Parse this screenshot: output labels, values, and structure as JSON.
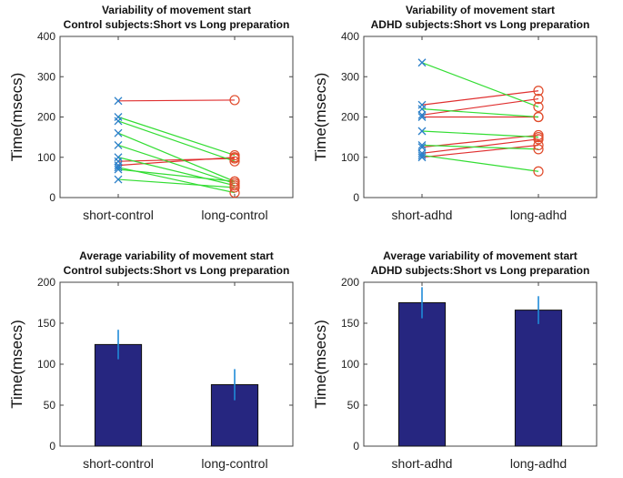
{
  "chart_data": [
    {
      "type": "line",
      "title": "Variability of movement start",
      "subtitle": "Control subjects:Short vs Long preparation",
      "xlabel": "",
      "ylabel": "Time(msecs)",
      "ylim": [
        0,
        400
      ],
      "yticks": [
        0,
        100,
        200,
        300,
        400
      ],
      "categories": [
        "short-control",
        "long-control"
      ],
      "pairs": [
        {
          "short": 240,
          "long": 242,
          "color": "#e03030"
        },
        {
          "short": 90,
          "long": 97,
          "color": "#e03030"
        },
        {
          "short": 80,
          "long": 100,
          "color": "#e03030"
        },
        {
          "short": 200,
          "long": 105,
          "color": "#33dd33"
        },
        {
          "short": 190,
          "long": 90,
          "color": "#33dd33"
        },
        {
          "short": 160,
          "long": 40,
          "color": "#33dd33"
        },
        {
          "short": 130,
          "long": 35,
          "color": "#33dd33"
        },
        {
          "short": 100,
          "long": 30,
          "color": "#33dd33"
        },
        {
          "short": 75,
          "long": 12,
          "color": "#33dd33"
        },
        {
          "short": 70,
          "long": 40,
          "color": "#33dd33"
        },
        {
          "short": 45,
          "long": 25,
          "color": "#33dd33"
        }
      ]
    },
    {
      "type": "line",
      "title": "Variability of movement start",
      "subtitle": "ADHD subjects:Short vs Long preparation",
      "xlabel": "",
      "ylabel": "Time(msecs)",
      "ylim": [
        0,
        400
      ],
      "yticks": [
        0,
        100,
        200,
        300,
        400
      ],
      "categories": [
        "short-adhd",
        "long-adhd"
      ],
      "pairs": [
        {
          "short": 230,
          "long": 265,
          "color": "#e03030"
        },
        {
          "short": 205,
          "long": 245,
          "color": "#e03030"
        },
        {
          "short": 200,
          "long": 200,
          "color": "#e03030"
        },
        {
          "short": 125,
          "long": 155,
          "color": "#e03030"
        },
        {
          "short": 110,
          "long": 145,
          "color": "#e03030"
        },
        {
          "short": 100,
          "long": 130,
          "color": "#e03030"
        },
        {
          "short": 335,
          "long": 225,
          "color": "#33dd33"
        },
        {
          "short": 220,
          "long": 200,
          "color": "#33dd33"
        },
        {
          "short": 165,
          "long": 150,
          "color": "#33dd33"
        },
        {
          "short": 130,
          "long": 120,
          "color": "#33dd33"
        },
        {
          "short": 105,
          "long": 65,
          "color": "#33dd33"
        }
      ]
    },
    {
      "type": "bar",
      "title": "Average variability of movement start",
      "subtitle": "Control subjects:Short vs Long preparation",
      "xlabel": "",
      "ylabel": "Time(msecs)",
      "ylim": [
        0,
        200
      ],
      "yticks": [
        0,
        50,
        100,
        150,
        200
      ],
      "categories": [
        "short-control",
        "long-control"
      ],
      "values": [
        124,
        75
      ],
      "errors": [
        18,
        19
      ]
    },
    {
      "type": "bar",
      "title": "Average variability of movement start",
      "subtitle": "ADHD subjects:Short vs Long preparation",
      "xlabel": "",
      "ylabel": "Time(msecs)",
      "ylim": [
        0,
        200
      ],
      "yticks": [
        0,
        50,
        100,
        150,
        200
      ],
      "categories": [
        "short-adhd",
        "long-adhd"
      ],
      "values": [
        175,
        166
      ],
      "errors": [
        19,
        17
      ]
    }
  ],
  "colors": {
    "bar_fill": "#262680",
    "error_bar": "#1f8ad8",
    "short_marker": "#2a7fc9",
    "long_marker": "#e04a2a",
    "axis": "#444444"
  }
}
